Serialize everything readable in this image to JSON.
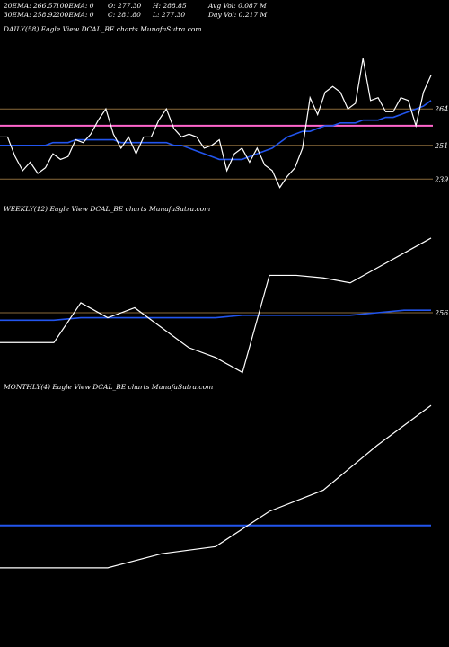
{
  "header": {
    "row1": [
      "20EMA: 266.57",
      "100EMA: 0",
      "O: 277.30",
      "H: 288.85",
      "Avg Vol: 0.087 M"
    ],
    "row2": [
      "30EMA: 258.92",
      "200EMA: 0",
      "C: 281.80",
      "L: 277.30",
      "Day Vol: 0.217 M"
    ]
  },
  "panels": {
    "daily": {
      "label": "DAILY(58) Eagle   View  DCAL_BE charts MunafaSutra.com"
    },
    "weekly": {
      "label": "WEEKLY(12) Eagle   View  DCAL_BE charts MunafaSutra.com"
    },
    "monthly": {
      "label": "MONTHLY(4) Eagle   View  DCAL_BE charts MunafaSutra.com"
    }
  },
  "colors": {
    "price": "#ffffff",
    "ema": "#2255ee",
    "hline": "#8a6a3a",
    "pink": "#ff66cc",
    "bg": "#000000"
  },
  "chart_data": [
    {
      "type": "line",
      "panel": "daily",
      "ylim": [
        233,
        290
      ],
      "y_ticks": [
        "264",
        "251",
        "239"
      ],
      "y_tick_values": [
        264,
        251,
        239
      ],
      "hlines": [
        264,
        251,
        239
      ],
      "pink_line": 258,
      "price": [
        254,
        254,
        247,
        242,
        245,
        241,
        243,
        248,
        246,
        247,
        253,
        252,
        255,
        260,
        264,
        255,
        250,
        254,
        248,
        254,
        254,
        260,
        264,
        257,
        254,
        255,
        254,
        250,
        251,
        253,
        242,
        248,
        250,
        245,
        250,
        244,
        242,
        236,
        240,
        243,
        250,
        268,
        262,
        270,
        272,
        270,
        264,
        266,
        282,
        267,
        268,
        263,
        263,
        268,
        267,
        258,
        270,
        276
      ],
      "ema": [
        251,
        251,
        251,
        251,
        251,
        251,
        251,
        252,
        252,
        252,
        253,
        253,
        253,
        253,
        253,
        253,
        252,
        252,
        252,
        252,
        252,
        252,
        252,
        251,
        251,
        250,
        249,
        248,
        247,
        246,
        246,
        246,
        246,
        247,
        248,
        249,
        250,
        252,
        254,
        255,
        256,
        256,
        257,
        258,
        258,
        259,
        259,
        259,
        260,
        260,
        260,
        261,
        261,
        262,
        263,
        264,
        265,
        267
      ]
    },
    {
      "type": "line",
      "panel": "weekly",
      "ylim": [
        230,
        295
      ],
      "y_ticks": [
        "256"
      ],
      "y_tick_values": [
        256
      ],
      "hlines": [
        256
      ],
      "price": [
        244,
        244,
        244,
        260,
        254,
        258,
        250,
        242,
        238,
        232,
        271,
        271,
        270,
        268,
        274,
        280,
        286
      ],
      "ema": [
        253,
        253,
        253,
        254,
        254,
        254,
        254,
        254,
        254,
        255,
        255,
        255,
        255,
        255,
        256,
        257,
        257
      ]
    },
    {
      "type": "line",
      "panel": "monthly",
      "ylim": [
        200,
        300
      ],
      "y_ticks": [],
      "y_tick_values": [],
      "hlines": [],
      "price": [
        226,
        226,
        226,
        232,
        235,
        250,
        259,
        278,
        295
      ],
      "ema": [
        244,
        244,
        244,
        244,
        244,
        244,
        244,
        244,
        244
      ]
    }
  ]
}
